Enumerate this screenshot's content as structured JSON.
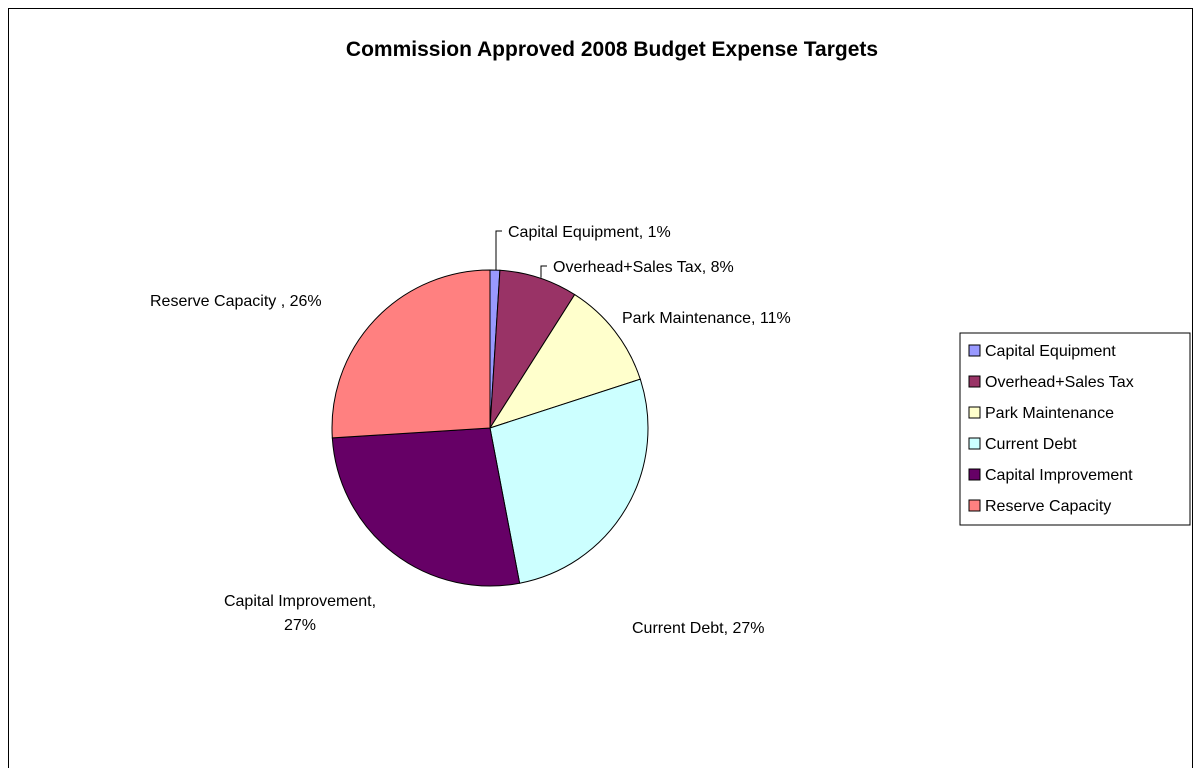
{
  "chart_data": {
    "type": "pie",
    "title": "Commission Approved 2008 Budget Expense Targets",
    "slices": [
      {
        "name": "Capital Equipment",
        "value": 1,
        "label": "Capital Equipment, 1%",
        "color": "#9999FF"
      },
      {
        "name": "Overhead+Sales Tax",
        "value": 8,
        "label": "Overhead+Sales Tax, 8%",
        "color": "#993366"
      },
      {
        "name": "Park Maintenance",
        "value": 11,
        "label": "Park Maintenance, 11%",
        "color": "#FFFFCC"
      },
      {
        "name": "Current Debt",
        "value": 27,
        "label": "Current Debt, 27%",
        "color": "#CCFFFF"
      },
      {
        "name": "Capital Improvement",
        "value": 27,
        "label": [
          "Capital Improvement,",
          "27%"
        ],
        "color": "#660066"
      },
      {
        "name": "Reserve Capacity",
        "value": 26,
        "label": "Reserve Capacity , 26%",
        "color": "#FF8080"
      }
    ],
    "legend": {
      "position": "right",
      "entries": [
        "Capital Equipment",
        "Overhead+Sales Tax",
        "Park Maintenance",
        "Current Debt",
        "Capital Improvement",
        "Reserve Capacity"
      ]
    }
  }
}
